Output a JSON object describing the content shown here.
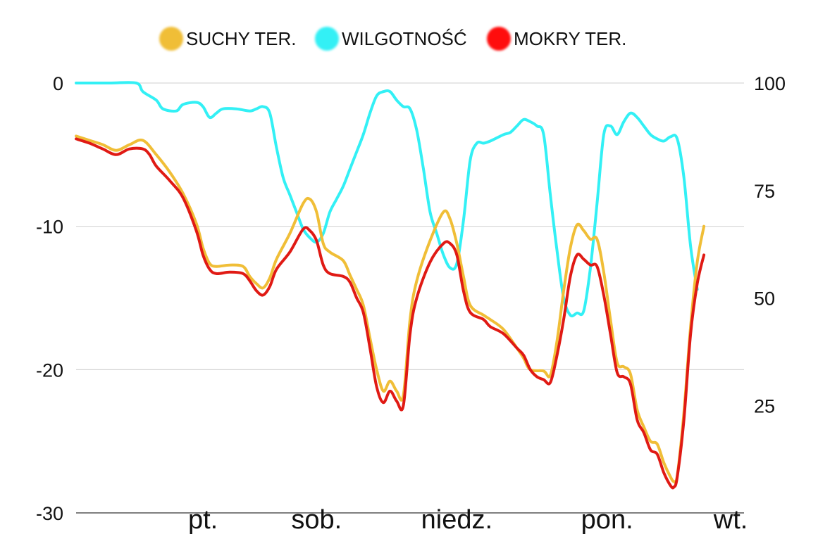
{
  "chart_data": {
    "type": "line",
    "title": "",
    "legend_position": "top",
    "grid": true,
    "x_labels": [
      "pt.",
      "sob.",
      "niedz.",
      "pon.",
      "wt."
    ],
    "x_range": [
      0,
      100
    ],
    "x_label_positions": [
      19,
      36,
      57,
      79.5,
      98
    ],
    "y_left": {
      "min": -30,
      "max": 0,
      "ticks": [
        0,
        -10,
        -20,
        -30
      ]
    },
    "y_right": {
      "min": 0,
      "max": 100,
      "ticks": [
        100,
        75,
        50,
        25
      ]
    },
    "series": [
      {
        "name": "SUCHY TER.",
        "color": "#f0be37",
        "axis": "left",
        "points": [
          [
            0,
            -3.7
          ],
          [
            2,
            -4.0
          ],
          [
            4,
            -4.3
          ],
          [
            6,
            -4.7
          ],
          [
            8,
            -4.3
          ],
          [
            10,
            -4.0
          ],
          [
            12,
            -5.0
          ],
          [
            14,
            -6.2
          ],
          [
            16,
            -7.7
          ],
          [
            18,
            -9.8
          ],
          [
            19,
            -11.5
          ],
          [
            20,
            -12.6
          ],
          [
            21,
            -12.8
          ],
          [
            23,
            -12.7
          ],
          [
            25,
            -12.8
          ],
          [
            26,
            -13.5
          ],
          [
            27,
            -14.0
          ],
          [
            28,
            -14.3
          ],
          [
            29,
            -13.6
          ],
          [
            30,
            -12.3
          ],
          [
            32,
            -10.5
          ],
          [
            34,
            -8.4
          ],
          [
            35,
            -8.1
          ],
          [
            36,
            -9.0
          ],
          [
            37,
            -11.2
          ],
          [
            38,
            -11.8
          ],
          [
            40,
            -12.4
          ],
          [
            41,
            -13.4
          ],
          [
            42,
            -14.4
          ],
          [
            43,
            -15.5
          ],
          [
            44,
            -17.8
          ],
          [
            45,
            -20.0
          ],
          [
            46,
            -21.5
          ],
          [
            47,
            -20.8
          ],
          [
            48,
            -21.5
          ],
          [
            49,
            -21.8
          ],
          [
            50,
            -16.5
          ],
          [
            51,
            -13.8
          ],
          [
            53,
            -11.0
          ],
          [
            55,
            -9.0
          ],
          [
            56,
            -9.5
          ],
          [
            57,
            -11.2
          ],
          [
            58,
            -13.5
          ],
          [
            59,
            -15.5
          ],
          [
            61,
            -16.2
          ],
          [
            62,
            -16.5
          ],
          [
            64,
            -17.2
          ],
          [
            66,
            -18.5
          ],
          [
            67,
            -19.2
          ],
          [
            68,
            -20.0
          ],
          [
            70,
            -20.1
          ],
          [
            71,
            -20.4
          ],
          [
            72,
            -18.0
          ],
          [
            73,
            -14.5
          ],
          [
            74,
            -11.5
          ],
          [
            75,
            -9.9
          ],
          [
            76,
            -10.3
          ],
          [
            77,
            -10.9
          ],
          [
            78,
            -10.9
          ],
          [
            79,
            -13.2
          ],
          [
            80,
            -16.5
          ],
          [
            81,
            -19.5
          ],
          [
            82,
            -19.8
          ],
          [
            83,
            -20.3
          ],
          [
            84,
            -22.8
          ],
          [
            85,
            -24.0
          ],
          [
            86,
            -25.0
          ],
          [
            87,
            -25.2
          ],
          [
            88,
            -26.5
          ],
          [
            89,
            -27.5
          ],
          [
            89.5,
            -27.8
          ],
          [
            90,
            -27.4
          ],
          [
            91,
            -23.0
          ],
          [
            92,
            -17.0
          ],
          [
            93,
            -12.5
          ],
          [
            94,
            -10.0
          ]
        ]
      },
      {
        "name": "WILGOTNOŚĆ",
        "color": "#33f0f5",
        "axis": "right",
        "points": [
          [
            0,
            100
          ],
          [
            5,
            100
          ],
          [
            9,
            100
          ],
          [
            10,
            98
          ],
          [
            12,
            96
          ],
          [
            13,
            94
          ],
          [
            15,
            93.5
          ],
          [
            16,
            95
          ],
          [
            18,
            95.5
          ],
          [
            19,
            94.5
          ],
          [
            20,
            92
          ],
          [
            21,
            93
          ],
          [
            22,
            94
          ],
          [
            24,
            94
          ],
          [
            26,
            93.5
          ],
          [
            27,
            94
          ],
          [
            28,
            94.5
          ],
          [
            29,
            93
          ],
          [
            30,
            85
          ],
          [
            31,
            78
          ],
          [
            32,
            74
          ],
          [
            33,
            70
          ],
          [
            34,
            66
          ],
          [
            35,
            64
          ],
          [
            36,
            63
          ],
          [
            37,
            65
          ],
          [
            38,
            70
          ],
          [
            39,
            73
          ],
          [
            40,
            76
          ],
          [
            41,
            80
          ],
          [
            42,
            84
          ],
          [
            43,
            88
          ],
          [
            44,
            93
          ],
          [
            45,
            97
          ],
          [
            46,
            98
          ],
          [
            47,
            98
          ],
          [
            48,
            96
          ],
          [
            49,
            94.5
          ],
          [
            50,
            94
          ],
          [
            51,
            89
          ],
          [
            52,
            80
          ],
          [
            53,
            70
          ],
          [
            54,
            65
          ],
          [
            55,
            60
          ],
          [
            56,
            57
          ],
          [
            57,
            58
          ],
          [
            58,
            68
          ],
          [
            59,
            82
          ],
          [
            60,
            86
          ],
          [
            61,
            86
          ],
          [
            62,
            86.5
          ],
          [
            64,
            88
          ],
          [
            65,
            88.5
          ],
          [
            66,
            90
          ],
          [
            67,
            91.5
          ],
          [
            68,
            91
          ],
          [
            69,
            90
          ],
          [
            70,
            88
          ],
          [
            71,
            74
          ],
          [
            72,
            61
          ],
          [
            73,
            50
          ],
          [
            74,
            46
          ],
          [
            75,
            46.5
          ],
          [
            76,
            47
          ],
          [
            77,
            57
          ],
          [
            78,
            72
          ],
          [
            79,
            88
          ],
          [
            80,
            90
          ],
          [
            81,
            88
          ],
          [
            82,
            91
          ],
          [
            83,
            93
          ],
          [
            84,
            92
          ],
          [
            85,
            90
          ],
          [
            86,
            88
          ],
          [
            87,
            87
          ],
          [
            88,
            86.5
          ],
          [
            89,
            87.5
          ],
          [
            90,
            87
          ],
          [
            91,
            78
          ],
          [
            92,
            62
          ],
          [
            93,
            52
          ]
        ]
      },
      {
        "name": "MOKRY TER.",
        "color": "#e01a14",
        "axis": "left",
        "points": [
          [
            0,
            -3.9
          ],
          [
            2,
            -4.2
          ],
          [
            4,
            -4.6
          ],
          [
            6,
            -5.0
          ],
          [
            8,
            -4.6
          ],
          [
            10,
            -4.6
          ],
          [
            11,
            -5.0
          ],
          [
            12,
            -5.8
          ],
          [
            14,
            -6.8
          ],
          [
            16,
            -8.0
          ],
          [
            18,
            -10.3
          ],
          [
            19,
            -12.0
          ],
          [
            20,
            -13.0
          ],
          [
            21,
            -13.3
          ],
          [
            23,
            -13.2
          ],
          [
            25,
            -13.3
          ],
          [
            26,
            -13.8
          ],
          [
            27,
            -14.5
          ],
          [
            28,
            -14.8
          ],
          [
            29,
            -14.2
          ],
          [
            30,
            -13.0
          ],
          [
            32,
            -11.8
          ],
          [
            34,
            -10.2
          ],
          [
            35,
            -10.3
          ],
          [
            36,
            -11.0
          ],
          [
            37,
            -12.7
          ],
          [
            38,
            -13.3
          ],
          [
            40,
            -13.5
          ],
          [
            41,
            -13.9
          ],
          [
            42,
            -15.0
          ],
          [
            43,
            -16.0
          ],
          [
            44,
            -18.5
          ],
          [
            45,
            -21.2
          ],
          [
            46,
            -22.3
          ],
          [
            47,
            -21.5
          ],
          [
            48,
            -22.2
          ],
          [
            49,
            -22.5
          ],
          [
            50,
            -17.5
          ],
          [
            51,
            -15.0
          ],
          [
            53,
            -12.5
          ],
          [
            55,
            -11.2
          ],
          [
            56,
            -11.2
          ],
          [
            57,
            -12.0
          ],
          [
            58,
            -14.5
          ],
          [
            59,
            -16.0
          ],
          [
            61,
            -16.5
          ],
          [
            62,
            -17.0
          ],
          [
            64,
            -17.5
          ],
          [
            66,
            -18.5
          ],
          [
            67,
            -19.0
          ],
          [
            68,
            -20.0
          ],
          [
            69,
            -20.5
          ],
          [
            70,
            -20.7
          ],
          [
            71,
            -20.9
          ],
          [
            72,
            -19.0
          ],
          [
            73,
            -16.5
          ],
          [
            74,
            -13.5
          ],
          [
            75,
            -12.0
          ],
          [
            76,
            -12.3
          ],
          [
            77,
            -12.7
          ],
          [
            78,
            -12.8
          ],
          [
            79,
            -14.8
          ],
          [
            80,
            -17.5
          ],
          [
            81,
            -20.2
          ],
          [
            82,
            -20.5
          ],
          [
            83,
            -21.0
          ],
          [
            84,
            -23.5
          ],
          [
            85,
            -24.4
          ],
          [
            86,
            -25.6
          ],
          [
            87,
            -25.9
          ],
          [
            88,
            -27.2
          ],
          [
            89,
            -28.1
          ],
          [
            89.5,
            -28.2
          ],
          [
            90,
            -27.5
          ],
          [
            91,
            -23.5
          ],
          [
            92,
            -17.5
          ],
          [
            93,
            -14.0
          ],
          [
            94,
            -12.0
          ]
        ]
      }
    ]
  }
}
